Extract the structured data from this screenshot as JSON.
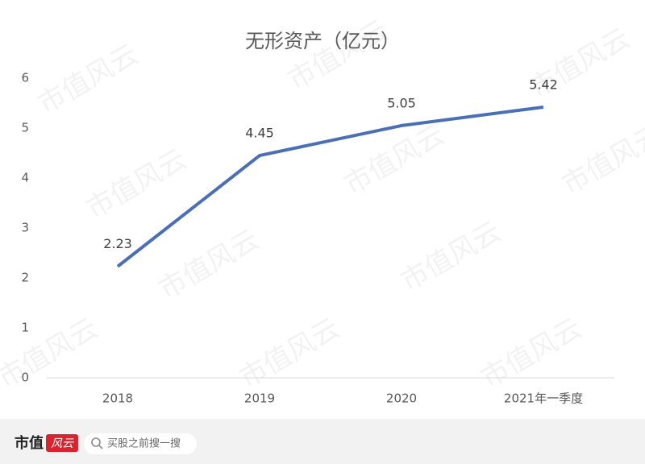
{
  "chart_data": {
    "type": "line",
    "title": "无形资产（亿元）",
    "categories": [
      "2018",
      "2019",
      "2020",
      "2021年一季度"
    ],
    "values": [
      2.23,
      4.45,
      5.05,
      5.42
    ],
    "color": "#4a6fb5",
    "ylim": [
      0,
      6
    ],
    "yticks": [
      0,
      1,
      2,
      3,
      4,
      5,
      6
    ],
    "grid": false,
    "data_labels": true
  },
  "watermark": "市值风云",
  "footer": {
    "logo_text": "市值",
    "logo_mark": "风云",
    "search": "买股之前搜一搜"
  }
}
